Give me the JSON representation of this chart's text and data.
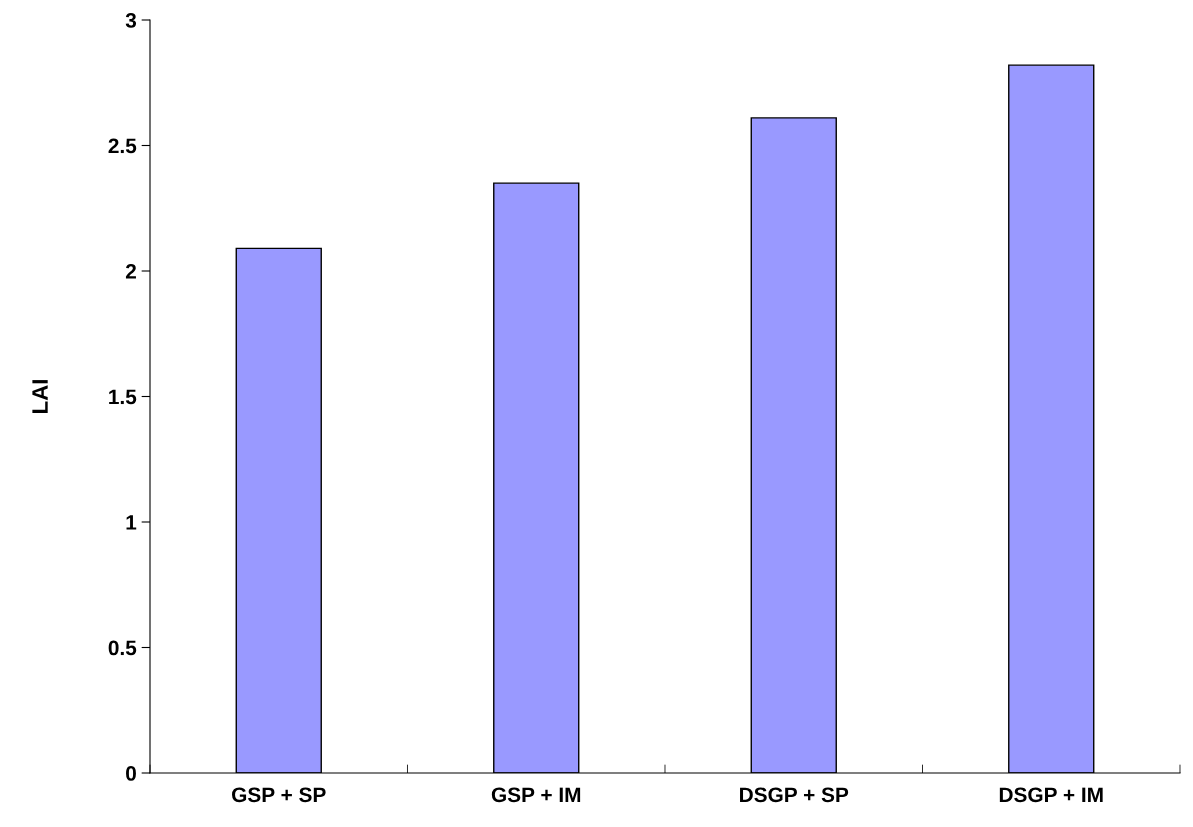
{
  "chart_data": {
    "type": "bar",
    "ylabel": "LAI",
    "categories": [
      "GSP + SP",
      "GSP + IM",
      "DSGP + SP",
      "DSGP + IM"
    ],
    "values": [
      2.09,
      2.35,
      2.61,
      2.82
    ],
    "color": "#9999ff",
    "ylim": [
      0,
      3
    ],
    "yticks": [
      0,
      0.5,
      1,
      1.5,
      2,
      2.5,
      3
    ],
    "grid": false,
    "legend": false
  }
}
